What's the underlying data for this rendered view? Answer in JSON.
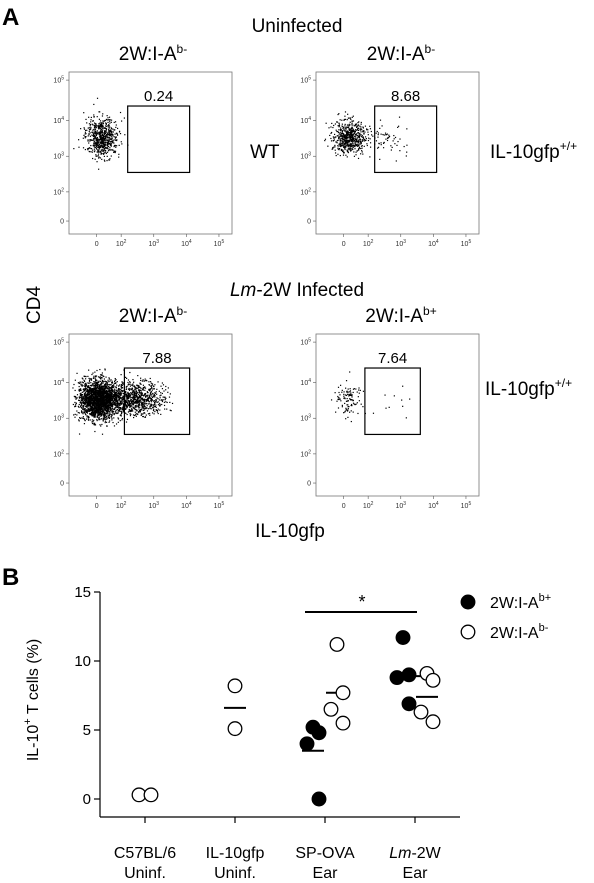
{
  "panel_a": {
    "letter": "A",
    "top_title": "Uninfected",
    "bottom_title_italic": "Lm",
    "bottom_title_rest": "-2W Infected",
    "y_axis_label": "CD4",
    "x_axis_label": "IL-10gfp",
    "plot_titles": [
      {
        "base": "2W:I-A",
        "sup": "b-"
      },
      {
        "base": "2W:I-A",
        "sup": "b-"
      },
      {
        "base": "2W:I-A",
        "sup": "b-"
      },
      {
        "base": "2W:I-A",
        "sup": "b+"
      }
    ],
    "row_labels": [
      {
        "left": "WT",
        "right_base": "IL-10gfp",
        "right_sup": "+/+"
      },
      {
        "right_base": "IL-10gfp",
        "right_sup": "+/+"
      }
    ],
    "gate_values": [
      "0.24",
      "8.68",
      "7.88",
      "7.64"
    ],
    "x_ticks": [
      "0",
      "10",
      "10",
      "10",
      "10"
    ],
    "x_tick_sups": [
      "",
      "2",
      "3",
      "4",
      "5"
    ],
    "y_ticks": [
      "10",
      "10",
      "10",
      "10",
      "0"
    ],
    "y_tick_sups": [
      "5",
      "4",
      "3",
      "2",
      ""
    ]
  },
  "chart_data": {
    "type": "scatter",
    "letter": "B",
    "ylabel_base": "IL-10",
    "ylabel_sup": "+",
    "ylabel_rest": " T cells (%)",
    "ylim": [
      0,
      15
    ],
    "y_ticks": [
      "0",
      "5",
      "10",
      "15"
    ],
    "categories": [
      {
        "line1": "C57BL/6",
        "line2": "Uninf.",
        "italic_part": ""
      },
      {
        "line1": "IL-10gfp",
        "line2": "Uninf.",
        "italic_part": ""
      },
      {
        "line1": "SP-OVA",
        "line2": "Ear",
        "italic_part": ""
      },
      {
        "line1": "-2W",
        "line2": "Ear",
        "italic_part": "Lm"
      }
    ],
    "series": [
      {
        "name_base": "2W:I-A",
        "name_sup": "b+",
        "fill": "#000000",
        "points": [
          [
            2,
            5.2
          ],
          [
            2,
            4.8
          ],
          [
            2,
            4.0
          ],
          [
            2,
            0.0
          ],
          [
            3,
            11.7
          ],
          [
            3,
            9.0
          ],
          [
            3,
            8.8
          ],
          [
            3,
            6.9
          ]
        ]
      },
      {
        "name_base": "2W:I-A",
        "name_sup": "b-",
        "fill": "#ffffff",
        "points": [
          [
            0,
            0.3
          ],
          [
            0,
            0.3
          ],
          [
            1,
            8.2
          ],
          [
            1,
            5.1
          ],
          [
            2,
            11.2
          ],
          [
            2,
            7.7
          ],
          [
            2,
            6.5
          ],
          [
            2,
            5.5
          ],
          [
            3,
            9.1
          ],
          [
            3,
            8.6
          ],
          [
            3,
            6.3
          ],
          [
            3,
            5.6
          ]
        ]
      }
    ],
    "means": [
      [
        0,
        0.3
      ],
      [
        1,
        6.6
      ],
      [
        2,
        3.5
      ],
      [
        2,
        7.7
      ],
      [
        3,
        8.9
      ],
      [
        3,
        7.4
      ]
    ],
    "significance": "*",
    "legend_position": "top-right"
  }
}
